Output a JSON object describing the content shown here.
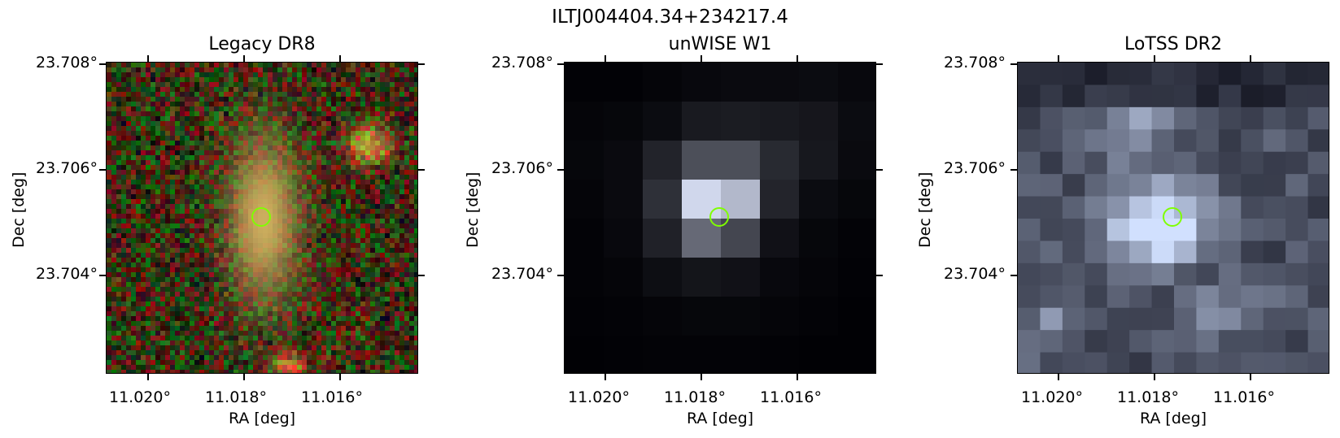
{
  "figure": {
    "title": "ILTJ004404.34+234217.4"
  },
  "panels": [
    {
      "title": "Legacy DR8",
      "ylabel": "Dec [deg]",
      "xlabel": "RA [deg]",
      "yticks": [
        "23.708°",
        "23.706°",
        "23.704°"
      ],
      "xticks": [
        "11.020°",
        "11.018°",
        "11.016°"
      ],
      "colormap": "rgb composite",
      "marker": "green circle"
    },
    {
      "title": "unWISE W1",
      "ylabel": "Dec [deg]",
      "xlabel": "RA [deg]",
      "yticks": [
        "23.708°",
        "23.706°",
        "23.704°"
      ],
      "xticks": [
        "11.020°",
        "11.018°",
        "11.016°"
      ],
      "colormap": "bone",
      "marker": "green circle"
    },
    {
      "title": "LoTSS DR2",
      "ylabel": "Dec [deg]",
      "xlabel": "RA [deg]",
      "yticks": [
        "23.708°",
        "23.706°",
        "23.704°"
      ],
      "xticks": [
        "11.020°",
        "11.018°",
        "11.016°"
      ],
      "colormap": "bone",
      "marker": "green circle"
    }
  ],
  "colors": {
    "marker": "#7fff00",
    "background": "#ffffff"
  }
}
